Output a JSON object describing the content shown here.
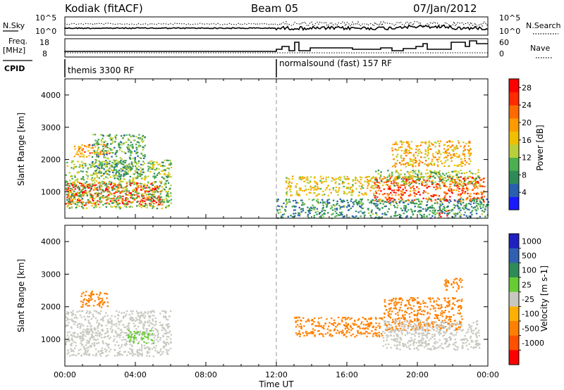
{
  "header": {
    "station": "Kodiak (fitACF)",
    "beam": "Beam 05",
    "date": "07/Jan/2012"
  },
  "top_panels": {
    "nsky_label": "N.Sky",
    "nsearch_label": "N.Search",
    "freq_label_1": "Freq.",
    "freq_label_2": "[MHz]",
    "nave_label": "Nave",
    "cpid_label": "CPID",
    "noise_ticks_left": [
      "10^5",
      "10^0"
    ],
    "noise_ticks_right": [
      "10^5",
      "10^0"
    ],
    "freq_ticks": [
      "18",
      "8"
    ],
    "nave_ticks": [
      "60",
      "0"
    ],
    "cpid_segments": [
      {
        "label": "themis 3300 RF",
        "start_hour": 0
      },
      {
        "label": "normalsound (fast) 157 RF",
        "start_hour": 12
      }
    ]
  },
  "colors": {
    "power_scale": [
      "#1a1aff",
      "#2a5fb0",
      "#2e8b57",
      "#4caf50",
      "#b9d03c",
      "#f0c000",
      "#ff9a00",
      "#ff6a00",
      "#ff2a00",
      "#ff0000"
    ],
    "velocity_scale": [
      "#2020c0",
      "#3060b0",
      "#2e8b57",
      "#66cc33",
      "#c8c8c0",
      "#ffb000",
      "#ff8000",
      "#ff5000",
      "#ff0000"
    ]
  },
  "chart_data": [
    {
      "type": "heatmap",
      "name": "power-panel",
      "xlabel": "",
      "ylabel": "Slant Range [km]",
      "xlim": [
        0,
        24
      ],
      "ylim": [
        180,
        4500
      ],
      "yticks": [
        "1000",
        "2000",
        "3000",
        "4000"
      ],
      "colorbar": {
        "label": "Power [dB]",
        "ticks": [
          "4",
          "8",
          "12",
          "16",
          "20",
          "24",
          "28"
        ],
        "range": [
          0,
          30
        ]
      },
      "regions": [
        {
          "t0": 0.0,
          "t1": 5.5,
          "r0": 600,
          "r1": 1300,
          "level": 26
        },
        {
          "t0": 0.0,
          "t1": 6.0,
          "r0": 500,
          "r1": 2000,
          "level": 12
        },
        {
          "t0": 0.5,
          "t1": 2.5,
          "r0": 2100,
          "r1": 2500,
          "level": 20
        },
        {
          "t0": 1.5,
          "t1": 4.5,
          "r0": 1500,
          "r1": 2800,
          "level": 10
        },
        {
          "t0": 12.5,
          "t1": 17.5,
          "r0": 900,
          "r1": 1500,
          "level": 16
        },
        {
          "t0": 17.5,
          "t1": 23.8,
          "r0": 700,
          "r1": 1500,
          "level": 24
        },
        {
          "t0": 17.5,
          "t1": 23.5,
          "r0": 1200,
          "r1": 1700,
          "level": 12
        },
        {
          "t0": 18.5,
          "t1": 23.0,
          "r0": 1800,
          "r1": 2600,
          "level": 18
        },
        {
          "t0": 21.2,
          "t1": 21.8,
          "r0": 250,
          "r1": 450,
          "level": 29
        },
        {
          "t0": 12.0,
          "t1": 24.0,
          "r0": 200,
          "r1": 800,
          "level": 8
        }
      ]
    },
    {
      "type": "heatmap",
      "name": "velocity-panel",
      "xlabel": "Time UT",
      "ylabel": "Slant Range [km]",
      "xlim": [
        0,
        24
      ],
      "ylim": [
        180,
        4500
      ],
      "yticks": [
        "1000",
        "2000",
        "3000",
        "4000"
      ],
      "xticks": [
        "00:00",
        "04:00",
        "08:00",
        "12:00",
        "16:00",
        "20:00",
        "00:00"
      ],
      "colorbar": {
        "label": "Velocity [m s-1]",
        "ticks": [
          "1000",
          "500",
          "100",
          "25",
          "-25",
          "-100",
          "-500",
          "-1000"
        ]
      },
      "regions": [
        {
          "t0": 0.0,
          "t1": 6.0,
          "r0": 500,
          "r1": 1900,
          "level": 0
        },
        {
          "t0": 0.8,
          "t1": 2.4,
          "r0": 2000,
          "r1": 2500,
          "level": -200
        },
        {
          "t0": 13.0,
          "t1": 18.0,
          "r0": 1100,
          "r1": 1700,
          "level": -300
        },
        {
          "t0": 18.0,
          "t1": 22.5,
          "r0": 1300,
          "r1": 2300,
          "level": -200
        },
        {
          "t0": 18.0,
          "t1": 23.5,
          "r0": 700,
          "r1": 1600,
          "level": 0
        },
        {
          "t0": 21.5,
          "t1": 22.5,
          "r0": 2500,
          "r1": 2900,
          "level": -300
        },
        {
          "t0": 3.5,
          "t1": 5.0,
          "r0": 900,
          "r1": 1300,
          "level": 80
        }
      ]
    }
  ]
}
